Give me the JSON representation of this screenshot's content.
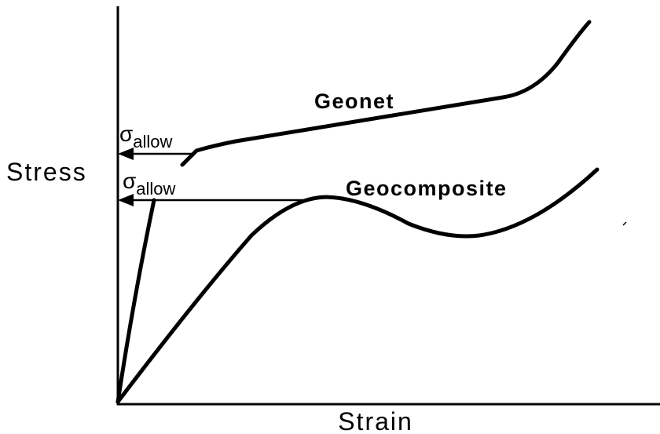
{
  "axes": {
    "y_label": "Stress",
    "x_label": "Strain"
  },
  "curves": [
    {
      "label": "Geonet"
    },
    {
      "label": "Geocomposite"
    }
  ],
  "annotations": [
    {
      "symbol": "σ",
      "subscript": "allow"
    },
    {
      "symbol": "σ",
      "subscript": "allow"
    }
  ]
}
